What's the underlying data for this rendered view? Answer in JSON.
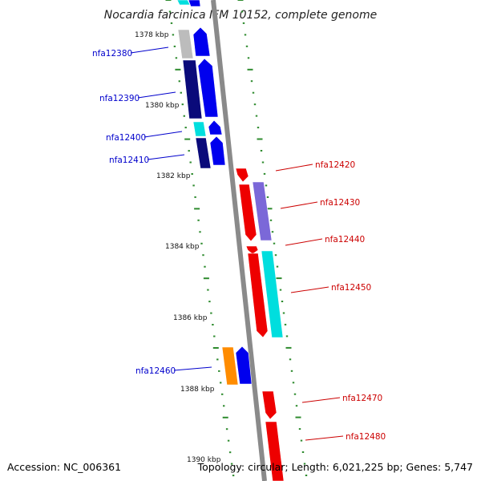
{
  "title": "Nocardia farcinica IFM 10152, complete genome",
  "footer": {
    "accession": "Accession: NC_006361",
    "summary": "Topology: circular; Length: 6,021,225 bp; Genes: 5,747"
  },
  "colors": {
    "backbone": "#8a8a8a",
    "tick": "#2e8b2e",
    "label_left": "#0000cc",
    "label_right": "#cc0000",
    "cyan": "#00dede",
    "white_gray": "#bcbcbc",
    "blue": "#0000ee",
    "navy": "#0a0a7a",
    "red": "#ee0000",
    "purple": "#7b68d8",
    "orange": "#ff8c00"
  },
  "scale_labels": [
    "1378 kbp",
    "1380 kbp",
    "1382 kbp",
    "1384 kbp",
    "1386 kbp",
    "1388 kbp",
    "1390 kbp"
  ],
  "genes": {
    "left": [
      "nfa12380",
      "nfa12390",
      "nfa12400",
      "nfa12410",
      "nfa12460"
    ],
    "right": [
      "nfa12420",
      "nfa12430",
      "nfa12440",
      "nfa12450",
      "nfa12470",
      "nfa12480"
    ]
  }
}
